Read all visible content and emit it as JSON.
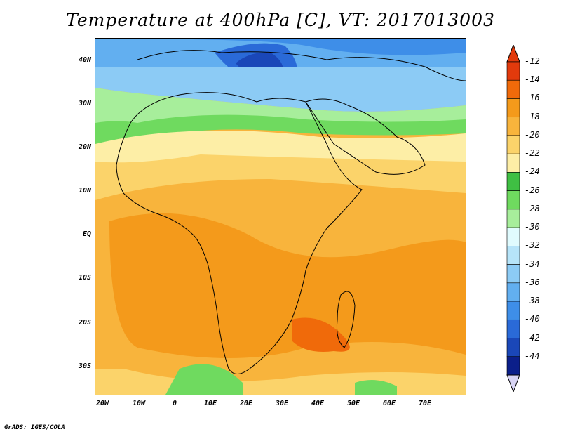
{
  "title": "Temperature at 400hPa [C], VT: 2017013003",
  "credit": "GrADS: IGES/COLA",
  "map": {
    "projection": "latlon",
    "lon_range": [
      -25,
      80
    ],
    "lat_range": [
      -38,
      46
    ],
    "lon_ticks": [
      "20W",
      "10W",
      "0",
      "10E",
      "20E",
      "30E",
      "40E",
      "50E",
      "60E",
      "70E"
    ],
    "lat_ticks": [
      "40N",
      "30N",
      "20N",
      "10N",
      "EQ",
      "10S",
      "20S",
      "30S"
    ],
    "field": "temperature",
    "level": "400hPa",
    "units": "C",
    "valid_time": "2017013003"
  },
  "colorbar": {
    "labels": [
      "-12",
      "-14",
      "-16",
      "-18",
      "-20",
      "-22",
      "-24",
      "-26",
      "-28",
      "-30",
      "-32",
      "-34",
      "-36",
      "-38",
      "-40",
      "-42",
      "-44"
    ],
    "colors": [
      "#e23a0c",
      "#f06a0a",
      "#f49a1b",
      "#f8b43c",
      "#fbd36a",
      "#fdeea6",
      "#3fbf43",
      "#6fda5f",
      "#a7ee9b",
      "#e0fbfe",
      "#b6e4f9",
      "#8ccbf5",
      "#62aff0",
      "#3e8ee8",
      "#2a6ad8",
      "#1a47b8",
      "#0b1f8a"
    ],
    "top_arrow_color": "#e23a0c",
    "bottom_arrow_color": "#d8d4f4"
  }
}
